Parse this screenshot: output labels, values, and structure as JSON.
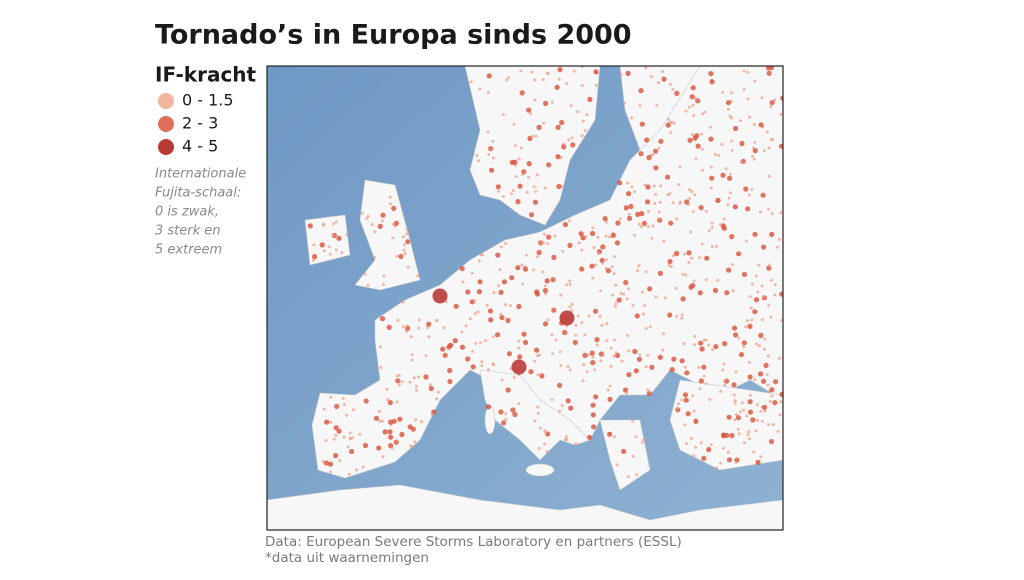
{
  "title": "Tornado’s in Europa sinds 2000",
  "legend": {
    "title": "IF-kracht",
    "items": [
      "0 - 1.5",
      "2 - 3",
      "4 - 5"
    ]
  },
  "note": [
    "Internationale",
    "Fujita-schaal:",
    "0 is zwak,",
    "3 sterk en",
    "5 extreem"
  ],
  "source": [
    "Data: European Severe Storms Laboratory en partners (ESSL)",
    "*data uit waarnemingen"
  ]
}
